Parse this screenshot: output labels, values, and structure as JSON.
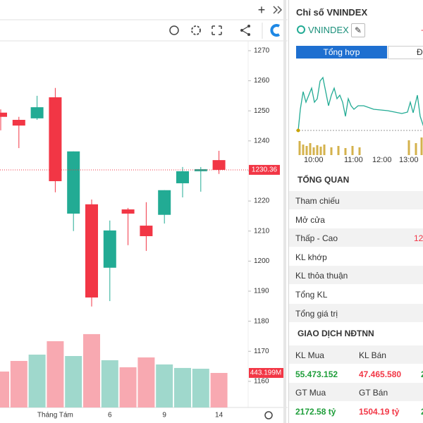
{
  "chart_data": {
    "type": "candlestick",
    "categories": [
      null,
      null,
      null,
      "Tháng Tám",
      null,
      null,
      "6",
      null,
      null,
      "9",
      null,
      null,
      "14"
    ],
    "open": [
      1249.4,
      1247.0,
      1247.5,
      1254.5,
      1215.8,
      1218.9,
      1197.8,
      1217.2,
      1211.8,
      1215.4,
      1225.9,
      1229.9,
      1233.6
    ],
    "high": [
      1250.5,
      1248.0,
      1255.0,
      1257.6,
      1236.5,
      1220.5,
      1213.5,
      1217.7,
      1219.6,
      1223.6,
      1231.3,
      1231.3,
      1236.7
    ],
    "low": [
      1243.5,
      1237.6,
      1247.0,
      1222.9,
      1210.0,
      1184.9,
      1186.7,
      1205.3,
      1203.4,
      1212.5,
      1221.2,
      1223.1,
      1229.0
    ],
    "close": [
      1248.0,
      1245.1,
      1251.2,
      1226.6,
      1236.5,
      1187.9,
      1210.2,
      1215.8,
      1208.3,
      1223.6,
      1229.9,
      1230.6,
      1230.36
    ],
    "volume": [
      461,
      597,
      678,
      850,
      660,
      941,
      606,
      516,
      642,
      552,
      507,
      497,
      443.199
    ],
    "volume_label": "443.199M",
    "up_color": "#22ab94",
    "down_color": "#f23645",
    "up_volume_color": "#9fd8cc",
    "down_volume_color": "#f8a9b1",
    "ylim": [
      1151.3,
      1272.8
    ],
    "yticks": [
      1160,
      1170,
      1180,
      1190,
      1200,
      1210,
      1220,
      1230,
      1240,
      1250,
      1260,
      1270
    ],
    "volume_lim": [
      0,
      1000
    ]
  },
  "panel": {
    "title": "Chỉ số VNINDEX",
    "symbol": "VNINDEX",
    "change": "-",
    "tabs": [
      "Tổng hợp",
      "Đ"
    ],
    "times": [
      "10:00",
      "11:00",
      "12:00",
      "13:00"
    ],
    "overview_title": "TỔNG QUAN",
    "overview_rows": [
      [
        "Tham chiếu",
        null
      ],
      [
        "Mở cửa",
        null
      ],
      [
        "Thấp - Cao",
        "12"
      ],
      [
        "KL khớp",
        null
      ],
      [
        "KL thỏa thuận",
        null
      ],
      [
        "Tổng KL",
        null
      ],
      [
        "Tổng giá trị",
        null
      ]
    ],
    "foreign_title": "GIAO DỊCH NĐTNN",
    "foreign_table": [
      [
        "KL Mua",
        "KL Bán",
        null
      ],
      [
        "55.473.152",
        "47.465.580",
        "2"
      ],
      [
        "GT Mua",
        "GT Bán",
        null
      ],
      [
        "2172.58 tỷ",
        "1504.19 tỷ",
        "2"
      ]
    ]
  }
}
